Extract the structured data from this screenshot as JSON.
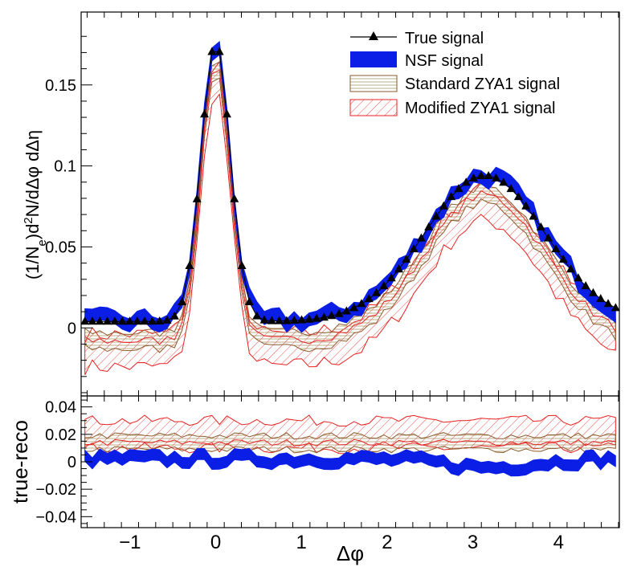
{
  "chart_data": [
    {
      "type": "line",
      "panel": "main",
      "ylabel_parts": [
        "(1/N",
        "e",
        ")d",
        "2",
        "N/dΔφ dΔη"
      ],
      "xlim": [
        -1.57,
        4.71
      ],
      "ylim": [
        -0.042,
        0.195
      ],
      "yticks": [
        0,
        0.05,
        0.1,
        0.15
      ],
      "ytick_labels": [
        "0",
        "0.05",
        "0.1",
        "0.15"
      ],
      "legend_position": "top-right",
      "legend": [
        {
          "key": "true",
          "label": "True signal"
        },
        {
          "key": "nsf",
          "label": "NSF signal"
        },
        {
          "key": "std",
          "label": "Standard ZYA1 signal"
        },
        {
          "key": "mod",
          "label": "Modified ZYA1 signal"
        }
      ],
      "model": {
        "comment": "Signal values in data units approximated as baseline + near-side gaussian + away-side gaussian of delta-phi",
        "true": {
          "base": 0.004,
          "near_amp": 0.172,
          "near_sigma": 0.17,
          "away_amp": 0.09,
          "away_center": 3.14,
          "away_sigma": 0.7
        },
        "nsf": {
          "offset": 0.0,
          "half_width": 0.004,
          "jitter": 0.005
        },
        "std": {
          "offset": -0.012,
          "half_width": 0.005,
          "jitter": 0.003
        },
        "mod": {
          "offset": -0.018,
          "half_width": 0.01,
          "jitter": 0.005
        }
      }
    },
    {
      "type": "line",
      "panel": "ratio",
      "ylabel": "true-reco",
      "xlabel": "Δφ",
      "xlim": [
        -1.57,
        4.71
      ],
      "ylim": [
        -0.048,
        0.048
      ],
      "yticks": [
        -0.04,
        -0.02,
        0,
        0.02,
        0.04
      ],
      "ytick_labels": [
        "−0.04",
        "−0.02",
        "0",
        "0.02",
        "0.04"
      ],
      "xticks": [
        -1,
        0,
        1,
        2,
        3,
        4
      ],
      "xtick_labels": [
        "−1",
        "0",
        "1",
        "2",
        "3",
        "4"
      ],
      "bands": {
        "nsf": {
          "center": 0.002,
          "half_width": 0.004
        },
        "std": {
          "center": 0.014,
          "half_width": 0.005
        },
        "mod": {
          "center": 0.02,
          "half_width": 0.01
        }
      }
    }
  ],
  "colors": {
    "true": "#000000",
    "nsf": "#0a1ee6",
    "std_line": "#8a5a2b",
    "std_hatch": "#b0a06a",
    "mod": "#e82020"
  }
}
